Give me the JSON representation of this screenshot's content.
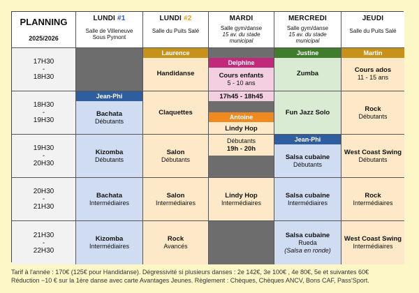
{
  "header": {
    "title": "PLANNING",
    "season": "2025/2026",
    "days": [
      {
        "name": "LUNDI ",
        "num": "#1",
        "loc1": "Salle de Villeneuve",
        "loc2": "Sous Pymont",
        "loc3": ""
      },
      {
        "name": "LUNDI ",
        "num": "#2",
        "loc1": "Salle du Puits Salé",
        "loc2": "",
        "loc3": ""
      },
      {
        "name": "MARDI",
        "num": "",
        "loc1": "Salle gym/danse",
        "loc2": "15 av. du stade",
        "loc3": "municipal"
      },
      {
        "name": "MERCREDI",
        "num": "",
        "loc1": "Salle gym/danse",
        "loc2": "15 av. du stade",
        "loc3": "municipal"
      },
      {
        "name": "JEUDI",
        "num": "",
        "loc1": "Salle du Puits Salé",
        "loc2": "",
        "loc3": ""
      }
    ]
  },
  "times": [
    {
      "start": "17H30",
      "sep": "-",
      "end": "18H30"
    },
    {
      "start": "18H30",
      "sep": "-",
      "end": "19H30"
    },
    {
      "start": "19H30",
      "sep": "-",
      "end": "20H30"
    },
    {
      "start": "20H30",
      "sep": "-",
      "end": "21H30"
    },
    {
      "start": "21H30",
      "sep": "-",
      "end": "22H30"
    }
  ],
  "teachers": {
    "laurence": "Laurence",
    "justine": "Justine",
    "martin": "Martin",
    "delphine": "Delphine",
    "jeanphi": "Jean-Phi",
    "antoine": "Antoine"
  },
  "classes": {
    "l2_r1": {
      "name": "Handidanse"
    },
    "ma_r1": {
      "name": "Cours enfants",
      "l2": "5 - 10 ans",
      "l3": "17h45 - 18h45"
    },
    "me_r1": {
      "name": "Zumba"
    },
    "j_r1": {
      "name": "Cours ados",
      "l2": "11 - 15 ans"
    },
    "l1_r2": {
      "name": "Bachata",
      "l2": "Débutants"
    },
    "l2_r2": {
      "name": "Claquettes"
    },
    "me_r2": {
      "name": "Fun Jazz Solo"
    },
    "j_r2": {
      "name": "Rock",
      "l2": "Débutants"
    },
    "ma_r3": {
      "name": "Lindy Hop",
      "l2": "Débutants",
      "l3": "19h - 20h"
    },
    "l1_r3": {
      "name": "Kizomba",
      "l2": "Débutants"
    },
    "l2_r3": {
      "name": "Salon",
      "l2": "Débutants"
    },
    "me_r3": {
      "name": "Salsa cubaine",
      "l2": "Débutants"
    },
    "j_r3": {
      "name": "West Coast Swing",
      "l2": "Débutants"
    },
    "l1_r4": {
      "name": "Bachata",
      "l2": "Intermédiaires"
    },
    "l2_r4": {
      "name": "Salon",
      "l2": "Intermédiaires"
    },
    "ma_r4": {
      "name": "Lindy Hop",
      "l2": "Intermédiaires"
    },
    "me_r4": {
      "name": "Salsa cubaine",
      "l2": "Intermédiaires"
    },
    "j_r4": {
      "name": "Rock",
      "l2": "Intermédiaires"
    },
    "l1_r5": {
      "name": "Kizomba",
      "l2": "Intermédiaires"
    },
    "l2_r5": {
      "name": "Rock",
      "l2": "Avancés"
    },
    "me_r5": {
      "name": "Salsa cubaine",
      "l2": "Rueda",
      "l3": "(Salsa en ronde)"
    },
    "j_r5": {
      "name": "West Coast Swing",
      "l2": "Intermédiaires"
    }
  },
  "footer": {
    "line1": "Tarif à l'année : 170€  (125€ pour Handidanse). Dégressivité si plusieurs danses : 2e 142€, 3e 100€ , 4e 80€, 5e et suivantes 60€",
    "line2": "Réduction −10 € sur la 1ère danse avec carte Avantages Jeunes.  Règlement : Chèques, Chèques ANCV, Bons CAF, Pass'Sport."
  },
  "colors": {
    "background": "#fdf6c6",
    "orange_cell": "#fde9c7",
    "blue_cell": "#cfdcf2",
    "green_cell": "#d9ebd3",
    "pink_cell": "#f4cfe1",
    "empty_cell": "#6d6d6d"
  }
}
